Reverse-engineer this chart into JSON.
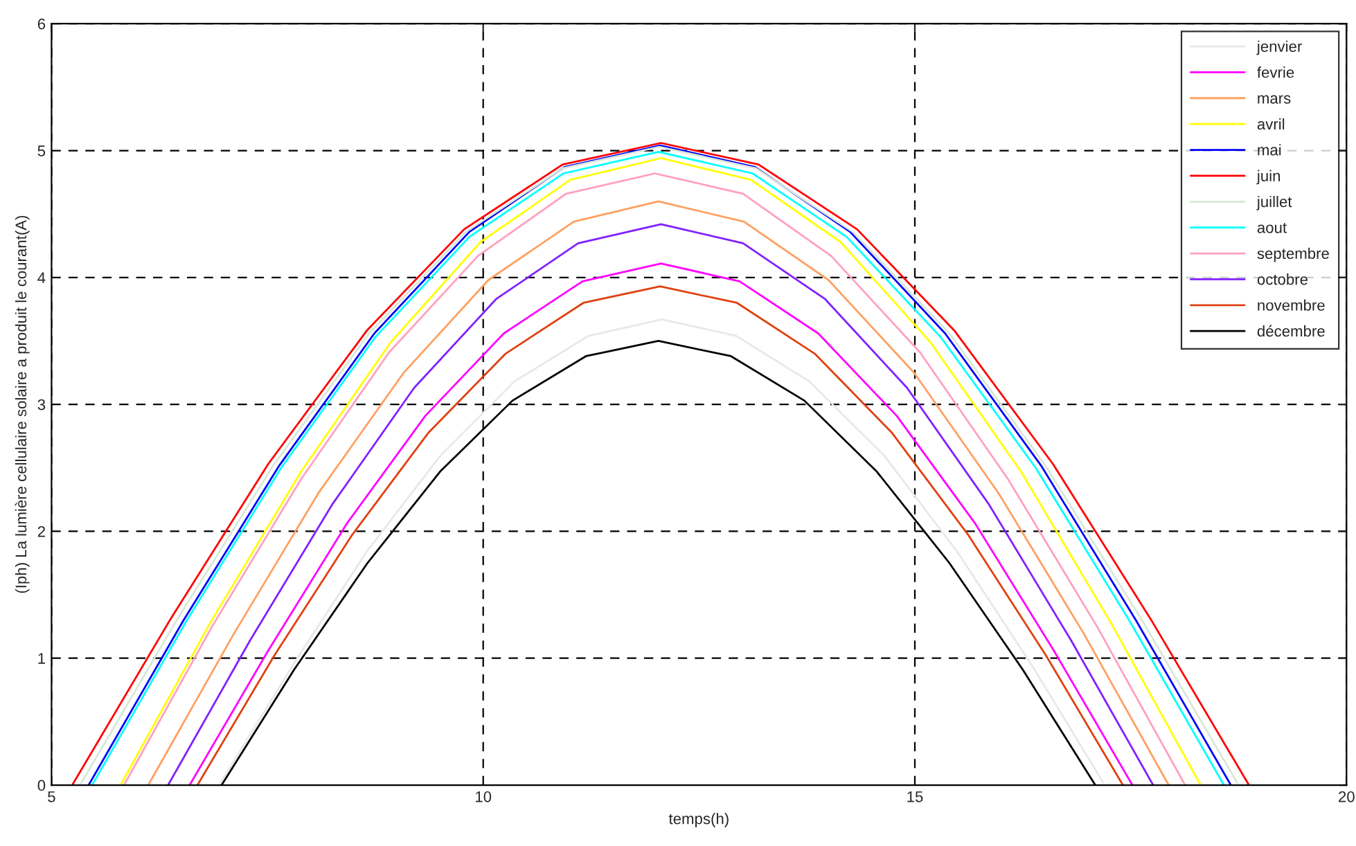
{
  "chart_data": {
    "type": "line",
    "xlabel": "temps(h)",
    "ylabel": "(Iph) La lumière cellulaire solaire a produit le courant(A)",
    "xlim": [
      5,
      20
    ],
    "ylim": [
      0,
      6
    ],
    "xticks": [
      5,
      10,
      15,
      20
    ],
    "yticks": [
      0,
      1,
      2,
      3,
      4,
      5,
      6
    ],
    "grid": true,
    "line_style": "solid",
    "legend": "top right",
    "series": [
      {
        "name": "jenvier",
        "color": "#e8e8e8",
        "x": [
          6.94,
          7.8,
          8.65,
          9.51,
          10.36,
          11.22,
          12.07,
          12.93,
          13.78,
          14.64,
          15.49,
          16.35,
          17.2
        ],
        "values": [
          0,
          0.95,
          1.84,
          2.6,
          3.18,
          3.54,
          3.67,
          3.54,
          3.18,
          2.6,
          1.84,
          0.95,
          0
        ]
      },
      {
        "name": "fevrie",
        "color": "#ff00ff",
        "x": [
          6.6,
          7.51,
          8.42,
          9.33,
          10.24,
          11.15,
          12.06,
          12.97,
          13.88,
          14.79,
          15.7,
          16.61,
          17.52
        ],
        "values": [
          0,
          1.06,
          2.06,
          2.91,
          3.56,
          3.97,
          4.11,
          3.97,
          3.56,
          2.91,
          2.06,
          1.06,
          0
        ]
      },
      {
        "name": "mars",
        "color": "#ffa060",
        "x": [
          6.12,
          7.11,
          8.09,
          9.08,
          10.06,
          11.05,
          12.03,
          13.02,
          14.0,
          14.99,
          15.97,
          16.96,
          17.94
        ],
        "values": [
          0,
          1.19,
          2.3,
          3.25,
          3.98,
          4.44,
          4.6,
          4.44,
          3.98,
          3.25,
          2.3,
          1.19,
          0
        ]
      },
      {
        "name": "avril",
        "color": "#ffff00",
        "x": [
          5.8,
          6.84,
          7.89,
          8.93,
          9.97,
          11.01,
          12.06,
          13.1,
          14.14,
          15.18,
          16.23,
          17.27,
          18.31
        ],
        "values": [
          0,
          1.28,
          2.47,
          3.49,
          4.28,
          4.77,
          4.94,
          4.77,
          4.28,
          3.49,
          2.47,
          1.28,
          0
        ]
      },
      {
        "name": "mai",
        "color": "#0000ff",
        "x": [
          5.43,
          6.53,
          7.64,
          8.74,
          9.84,
          10.94,
          12.05,
          13.15,
          14.25,
          15.35,
          16.46,
          17.56,
          18.66
        ],
        "values": [
          0,
          1.3,
          2.52,
          3.56,
          4.36,
          4.87,
          5.04,
          4.87,
          4.36,
          3.56,
          2.52,
          1.3,
          0
        ]
      },
      {
        "name": "juin",
        "color": "#ff0000",
        "x": [
          5.24,
          6.38,
          7.51,
          8.65,
          9.78,
          10.92,
          12.06,
          13.19,
          14.33,
          15.46,
          16.6,
          17.73,
          18.87
        ],
        "values": [
          0,
          1.31,
          2.53,
          3.58,
          4.38,
          4.89,
          5.06,
          4.89,
          4.38,
          3.58,
          2.53,
          1.31,
          0
        ]
      },
      {
        "name": "juillet",
        "color": "#d8e8d8",
        "x": [
          5.33,
          6.45,
          7.57,
          8.68,
          9.8,
          10.92,
          12.04,
          13.16,
          14.28,
          15.4,
          16.51,
          17.63,
          18.75
        ],
        "values": [
          0,
          1.3,
          2.52,
          3.56,
          4.36,
          4.86,
          5.03,
          4.86,
          4.36,
          3.56,
          2.52,
          1.3,
          0
        ]
      },
      {
        "name": "aout",
        "color": "#00ffff",
        "x": [
          5.47,
          6.56,
          7.66,
          8.75,
          9.84,
          10.93,
          12.03,
          13.12,
          14.21,
          15.3,
          16.4,
          17.49,
          18.58
        ],
        "values": [
          0,
          1.29,
          2.5,
          3.53,
          4.32,
          4.82,
          4.99,
          4.82,
          4.32,
          3.53,
          2.5,
          1.29,
          0
        ]
      },
      {
        "name": "septembre",
        "color": "#ffa0c0",
        "x": [
          5.84,
          6.86,
          7.89,
          8.91,
          9.94,
          10.96,
          11.99,
          13.01,
          14.03,
          15.06,
          16.08,
          17.11,
          18.13
        ],
        "values": [
          0,
          1.25,
          2.41,
          3.41,
          4.17,
          4.66,
          4.82,
          4.66,
          4.17,
          3.41,
          2.41,
          1.25,
          0
        ]
      },
      {
        "name": "octobre",
        "color": "#8020ff",
        "x": [
          6.35,
          7.3,
          8.25,
          9.2,
          10.15,
          11.1,
          12.06,
          13.01,
          13.96,
          14.91,
          15.86,
          16.81,
          17.76
        ],
        "values": [
          0,
          1.14,
          2.21,
          3.13,
          3.83,
          4.27,
          4.42,
          4.27,
          3.83,
          3.13,
          2.21,
          1.14,
          0
        ]
      },
      {
        "name": "novembre",
        "color": "#e04010",
        "x": [
          6.69,
          7.58,
          8.48,
          9.37,
          10.26,
          11.16,
          12.05,
          12.94,
          13.84,
          14.73,
          15.62,
          16.52,
          17.41
        ],
        "values": [
          0,
          1.02,
          1.97,
          2.78,
          3.4,
          3.8,
          3.93,
          3.8,
          3.4,
          2.78,
          1.97,
          1.02,
          0
        ]
      },
      {
        "name": "décembre",
        "color": "#000000",
        "x": [
          6.97,
          7.81,
          8.66,
          9.5,
          10.34,
          11.19,
          12.03,
          12.87,
          13.72,
          14.56,
          15.4,
          16.25,
          17.09
        ],
        "values": [
          0,
          0.91,
          1.75,
          2.47,
          3.03,
          3.38,
          3.5,
          3.38,
          3.03,
          2.47,
          1.75,
          0.91,
          0
        ]
      }
    ]
  }
}
